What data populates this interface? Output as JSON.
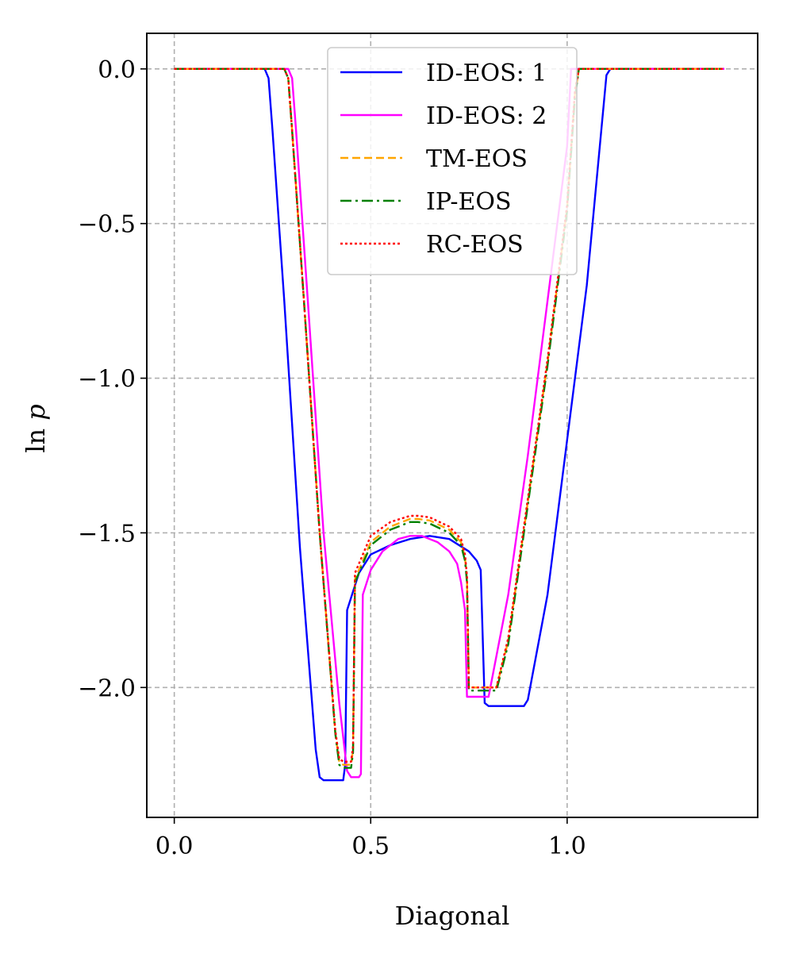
{
  "chart_data": {
    "type": "line",
    "xlabel": "Diagonal",
    "ylabel": "ln p",
    "xlim": [
      -0.07,
      1.485
    ],
    "ylim": [
      -2.42,
      0.115
    ],
    "x_ticks": [
      0.0,
      0.5,
      1.0
    ],
    "x_tick_labels": [
      "0.0",
      "0.5",
      "1.0"
    ],
    "y_ticks": [
      0.0,
      -0.5,
      -1.0,
      -1.5,
      -2.0
    ],
    "y_tick_labels": [
      "0.0",
      "−0.5",
      "−1.0",
      "−1.5",
      "−2.0"
    ],
    "grid": true,
    "legend_position": "top-center",
    "series": [
      {
        "name": "ID-EOS: 1",
        "color": "#0000ff",
        "dash": "solid",
        "x": [
          0.0,
          0.23,
          0.24,
          0.25,
          0.28,
          0.32,
          0.36,
          0.37,
          0.38,
          0.43,
          0.435,
          0.44,
          0.47,
          0.5,
          0.55,
          0.6,
          0.65,
          0.7,
          0.75,
          0.77,
          0.78,
          0.79,
          0.8,
          0.85,
          0.89,
          0.9,
          0.95,
          1.0,
          1.05,
          1.1,
          1.11,
          1.4
        ],
        "y": [
          0.0,
          0.0,
          -0.03,
          -0.2,
          -0.75,
          -1.55,
          -2.2,
          -2.29,
          -2.3,
          -2.3,
          -2.25,
          -1.75,
          -1.63,
          -1.57,
          -1.54,
          -1.52,
          -1.51,
          -1.52,
          -1.56,
          -1.59,
          -1.62,
          -2.05,
          -2.06,
          -2.06,
          -2.06,
          -2.04,
          -1.7,
          -1.2,
          -0.7,
          -0.02,
          0.0,
          0.0
        ]
      },
      {
        "name": "ID-EOS: 2",
        "color": "#ff00ff",
        "dash": "solid",
        "x": [
          0.0,
          0.29,
          0.3,
          0.31,
          0.34,
          0.38,
          0.42,
          0.44,
          0.45,
          0.47,
          0.475,
          0.48,
          0.5,
          0.53,
          0.57,
          0.6,
          0.63,
          0.67,
          0.7,
          0.72,
          0.73,
          0.74,
          0.745,
          0.8,
          0.85,
          0.9,
          0.95,
          1.0,
          1.01,
          1.4
        ],
        "y": [
          0.0,
          0.0,
          -0.03,
          -0.2,
          -0.75,
          -1.5,
          -2.05,
          -2.27,
          -2.29,
          -2.29,
          -2.28,
          -1.7,
          -1.62,
          -1.56,
          -1.52,
          -1.51,
          -1.51,
          -1.53,
          -1.56,
          -1.6,
          -1.66,
          -1.75,
          -2.03,
          -2.03,
          -1.7,
          -1.25,
          -0.75,
          -0.25,
          0.0,
          0.0
        ]
      },
      {
        "name": "TM-EOS",
        "color": "#ffa500",
        "dash": "dashed",
        "x": [
          0.0,
          0.28,
          0.29,
          0.3,
          0.33,
          0.37,
          0.41,
          0.42,
          0.43,
          0.45,
          0.455,
          0.46,
          0.5,
          0.55,
          0.6,
          0.62,
          0.65,
          0.7,
          0.73,
          0.74,
          0.745,
          0.75,
          0.82,
          0.85,
          0.9,
          0.95,
          1.0,
          1.02,
          1.03,
          1.4
        ],
        "y": [
          0.0,
          0.0,
          -0.03,
          -0.2,
          -0.75,
          -1.5,
          -2.15,
          -2.24,
          -2.25,
          -2.25,
          -2.2,
          -1.65,
          -1.53,
          -1.48,
          -1.455,
          -1.455,
          -1.46,
          -1.49,
          -1.53,
          -1.58,
          -1.65,
          -2.0,
          -2.0,
          -1.85,
          -1.4,
          -0.95,
          -0.45,
          -0.08,
          0.0,
          0.0
        ]
      },
      {
        "name": "IP-EOS",
        "color": "#008000",
        "dash": "dashdot",
        "x": [
          0.0,
          0.28,
          0.29,
          0.3,
          0.33,
          0.37,
          0.41,
          0.42,
          0.43,
          0.45,
          0.455,
          0.46,
          0.5,
          0.55,
          0.6,
          0.62,
          0.65,
          0.7,
          0.73,
          0.74,
          0.745,
          0.75,
          0.82,
          0.85,
          0.9,
          0.95,
          1.0,
          1.02,
          1.03,
          1.4
        ],
        "y": [
          0.0,
          0.0,
          -0.03,
          -0.2,
          -0.75,
          -1.5,
          -2.15,
          -2.25,
          -2.26,
          -2.26,
          -2.21,
          -1.66,
          -1.54,
          -1.49,
          -1.465,
          -1.465,
          -1.47,
          -1.5,
          -1.54,
          -1.59,
          -1.66,
          -2.01,
          -2.01,
          -1.86,
          -1.41,
          -0.96,
          -0.46,
          -0.09,
          0.0,
          0.0
        ]
      },
      {
        "name": "RC-EOS",
        "color": "#ff0000",
        "dash": "dotted",
        "x": [
          0.0,
          0.28,
          0.29,
          0.3,
          0.33,
          0.37,
          0.41,
          0.42,
          0.43,
          0.45,
          0.455,
          0.46,
          0.5,
          0.55,
          0.6,
          0.62,
          0.65,
          0.7,
          0.73,
          0.74,
          0.745,
          0.75,
          0.82,
          0.85,
          0.9,
          0.95,
          1.0,
          1.02,
          1.03,
          1.4
        ],
        "y": [
          0.0,
          0.0,
          -0.03,
          -0.2,
          -0.75,
          -1.5,
          -2.14,
          -2.23,
          -2.24,
          -2.24,
          -2.19,
          -1.63,
          -1.51,
          -1.465,
          -1.445,
          -1.445,
          -1.45,
          -1.48,
          -1.52,
          -1.57,
          -1.64,
          -2.0,
          -2.0,
          -1.84,
          -1.39,
          -0.94,
          -0.44,
          -0.07,
          0.0,
          0.0
        ]
      }
    ]
  }
}
